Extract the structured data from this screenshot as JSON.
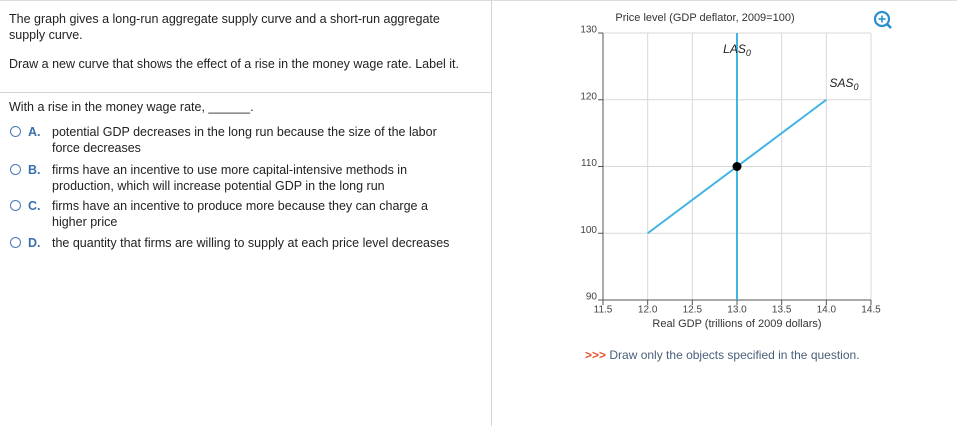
{
  "question": {
    "intro": "The graph gives a long-run aggregate supply curve and a short-run aggregate supply curve.",
    "instruction": "Draw a new curve that shows the effect of a rise in the money wage rate. Label it.",
    "prompt": "With a rise in the money wage rate, ______.",
    "options": [
      {
        "letter": "A.",
        "text": "potential GDP decreases in the long run because the size of the labor force decreases"
      },
      {
        "letter": "B.",
        "text": "firms have an incentive to use more capital-intensive methods in production, which will increase potential GDP in the long run"
      },
      {
        "letter": "C.",
        "text": "firms have an incentive to produce more because they can charge a higher price"
      },
      {
        "letter": "D.",
        "text": "the quantity that firms are willing to supply at each price level decreases"
      }
    ]
  },
  "chart_data": {
    "type": "line",
    "title": "Price level (GDP deflator, 2009=100)",
    "x_label": "Real GDP (trillions of 2009 dollars)",
    "xlim": [
      11.5,
      14.5
    ],
    "ylim": [
      90,
      130
    ],
    "xticks": [
      11.5,
      {
        "value": 12,
        "label": "12.0"
      },
      12.5,
      {
        "value": 13,
        "label": "13.0"
      },
      13.5,
      {
        "value": 14,
        "label": "14.0"
      },
      14.5
    ],
    "yticks": [
      90,
      100,
      110,
      120,
      130
    ],
    "grid": true,
    "series": [
      {
        "name": "LAS",
        "subscript": "0",
        "color": "#41b4e3",
        "x": [
          13,
          13
        ],
        "values": [
          90,
          130
        ]
      },
      {
        "name": "SAS",
        "subscript": "0",
        "color": "#41b4e3",
        "x": [
          12,
          14
        ],
        "values": [
          100,
          120
        ]
      }
    ],
    "points": [
      {
        "x": 13,
        "y": 110,
        "color": "#000000"
      }
    ]
  },
  "hint": {
    "marker": ">>>",
    "text": "Draw only the objects specified in the question."
  }
}
